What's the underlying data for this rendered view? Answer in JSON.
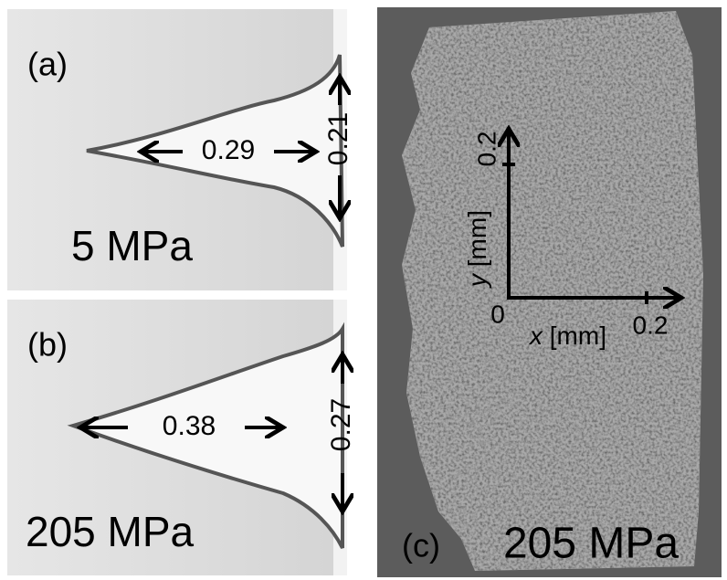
{
  "panels": [
    {
      "label": "(a)",
      "length": "0.29",
      "width": "0.21",
      "pressure": "5 MPa"
    },
    {
      "label": "(b)",
      "length": "0.38",
      "width": "0.27",
      "pressure": "205 MPa"
    },
    {
      "label": "(c)",
      "pressure": "205 MPa",
      "y_var": "y",
      "y_unit": "[mm]",
      "x_var": "x",
      "x_unit": "[mm]",
      "origin": "0",
      "y_tick": "0.2",
      "x_tick": "0.2"
    }
  ]
}
